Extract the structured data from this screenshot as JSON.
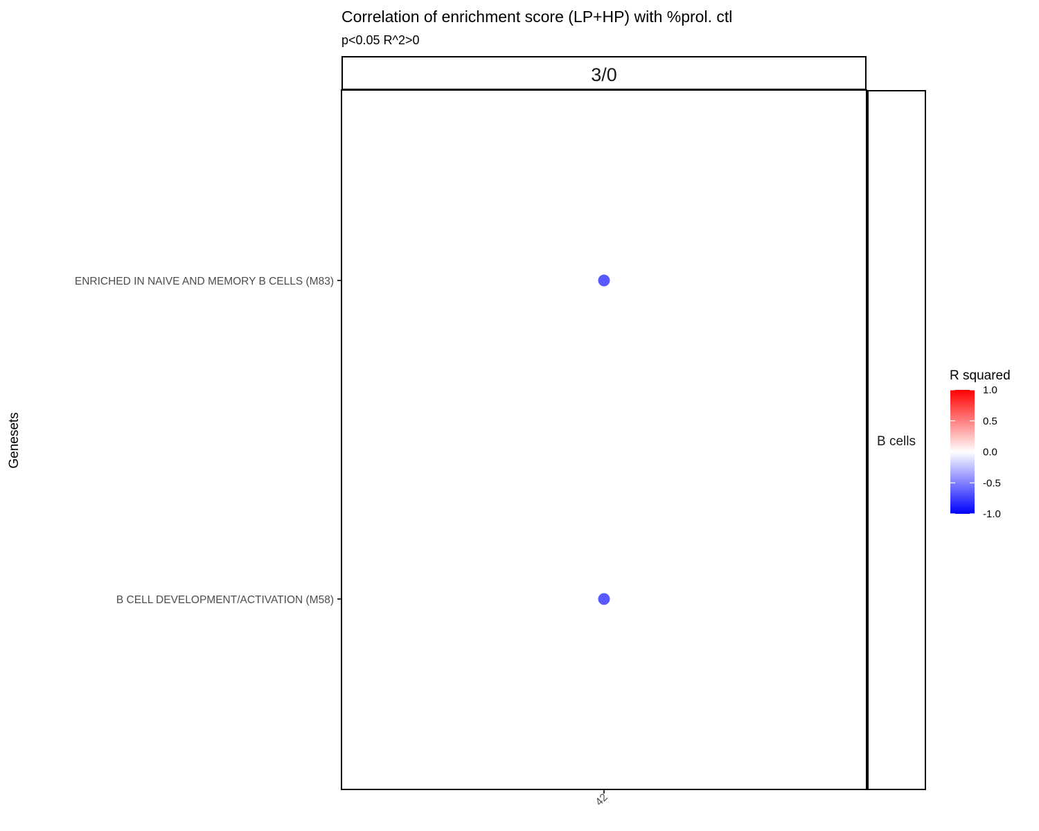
{
  "chart_data": {
    "type": "scatter",
    "title": "Correlation of enrichment score (LP+HP) with %prol. ctl",
    "subtitle": "p<0.05 R^2>0",
    "ylabel": "Genesets",
    "xlabel": "",
    "facet_col": "3/0",
    "facet_row": "B cells",
    "x_categories": [
      "42"
    ],
    "y_categories": [
      "ENRICHED IN NAIVE AND MEMORY B CELLS (M83)",
      "B CELL DEVELOPMENT/ACTIVATION (M58)"
    ],
    "points": [
      {
        "x": "42",
        "y": "ENRICHED IN NAIVE AND MEMORY B CELLS (M83)",
        "r_squared": -0.65
      },
      {
        "x": "42",
        "y": "B CELL DEVELOPMENT/ACTIVATION (M58)",
        "r_squared": -0.65
      }
    ],
    "legend": {
      "title": "R squared",
      "placement": "right",
      "range": [
        -1.0,
        1.0
      ],
      "ticks": [
        "1.0",
        "0.5",
        "0.0",
        "-0.5",
        "-1.0"
      ],
      "low_color": "#0000ff",
      "mid_color": "#ffffff",
      "high_color": "#ff0000"
    },
    "grid": false
  }
}
